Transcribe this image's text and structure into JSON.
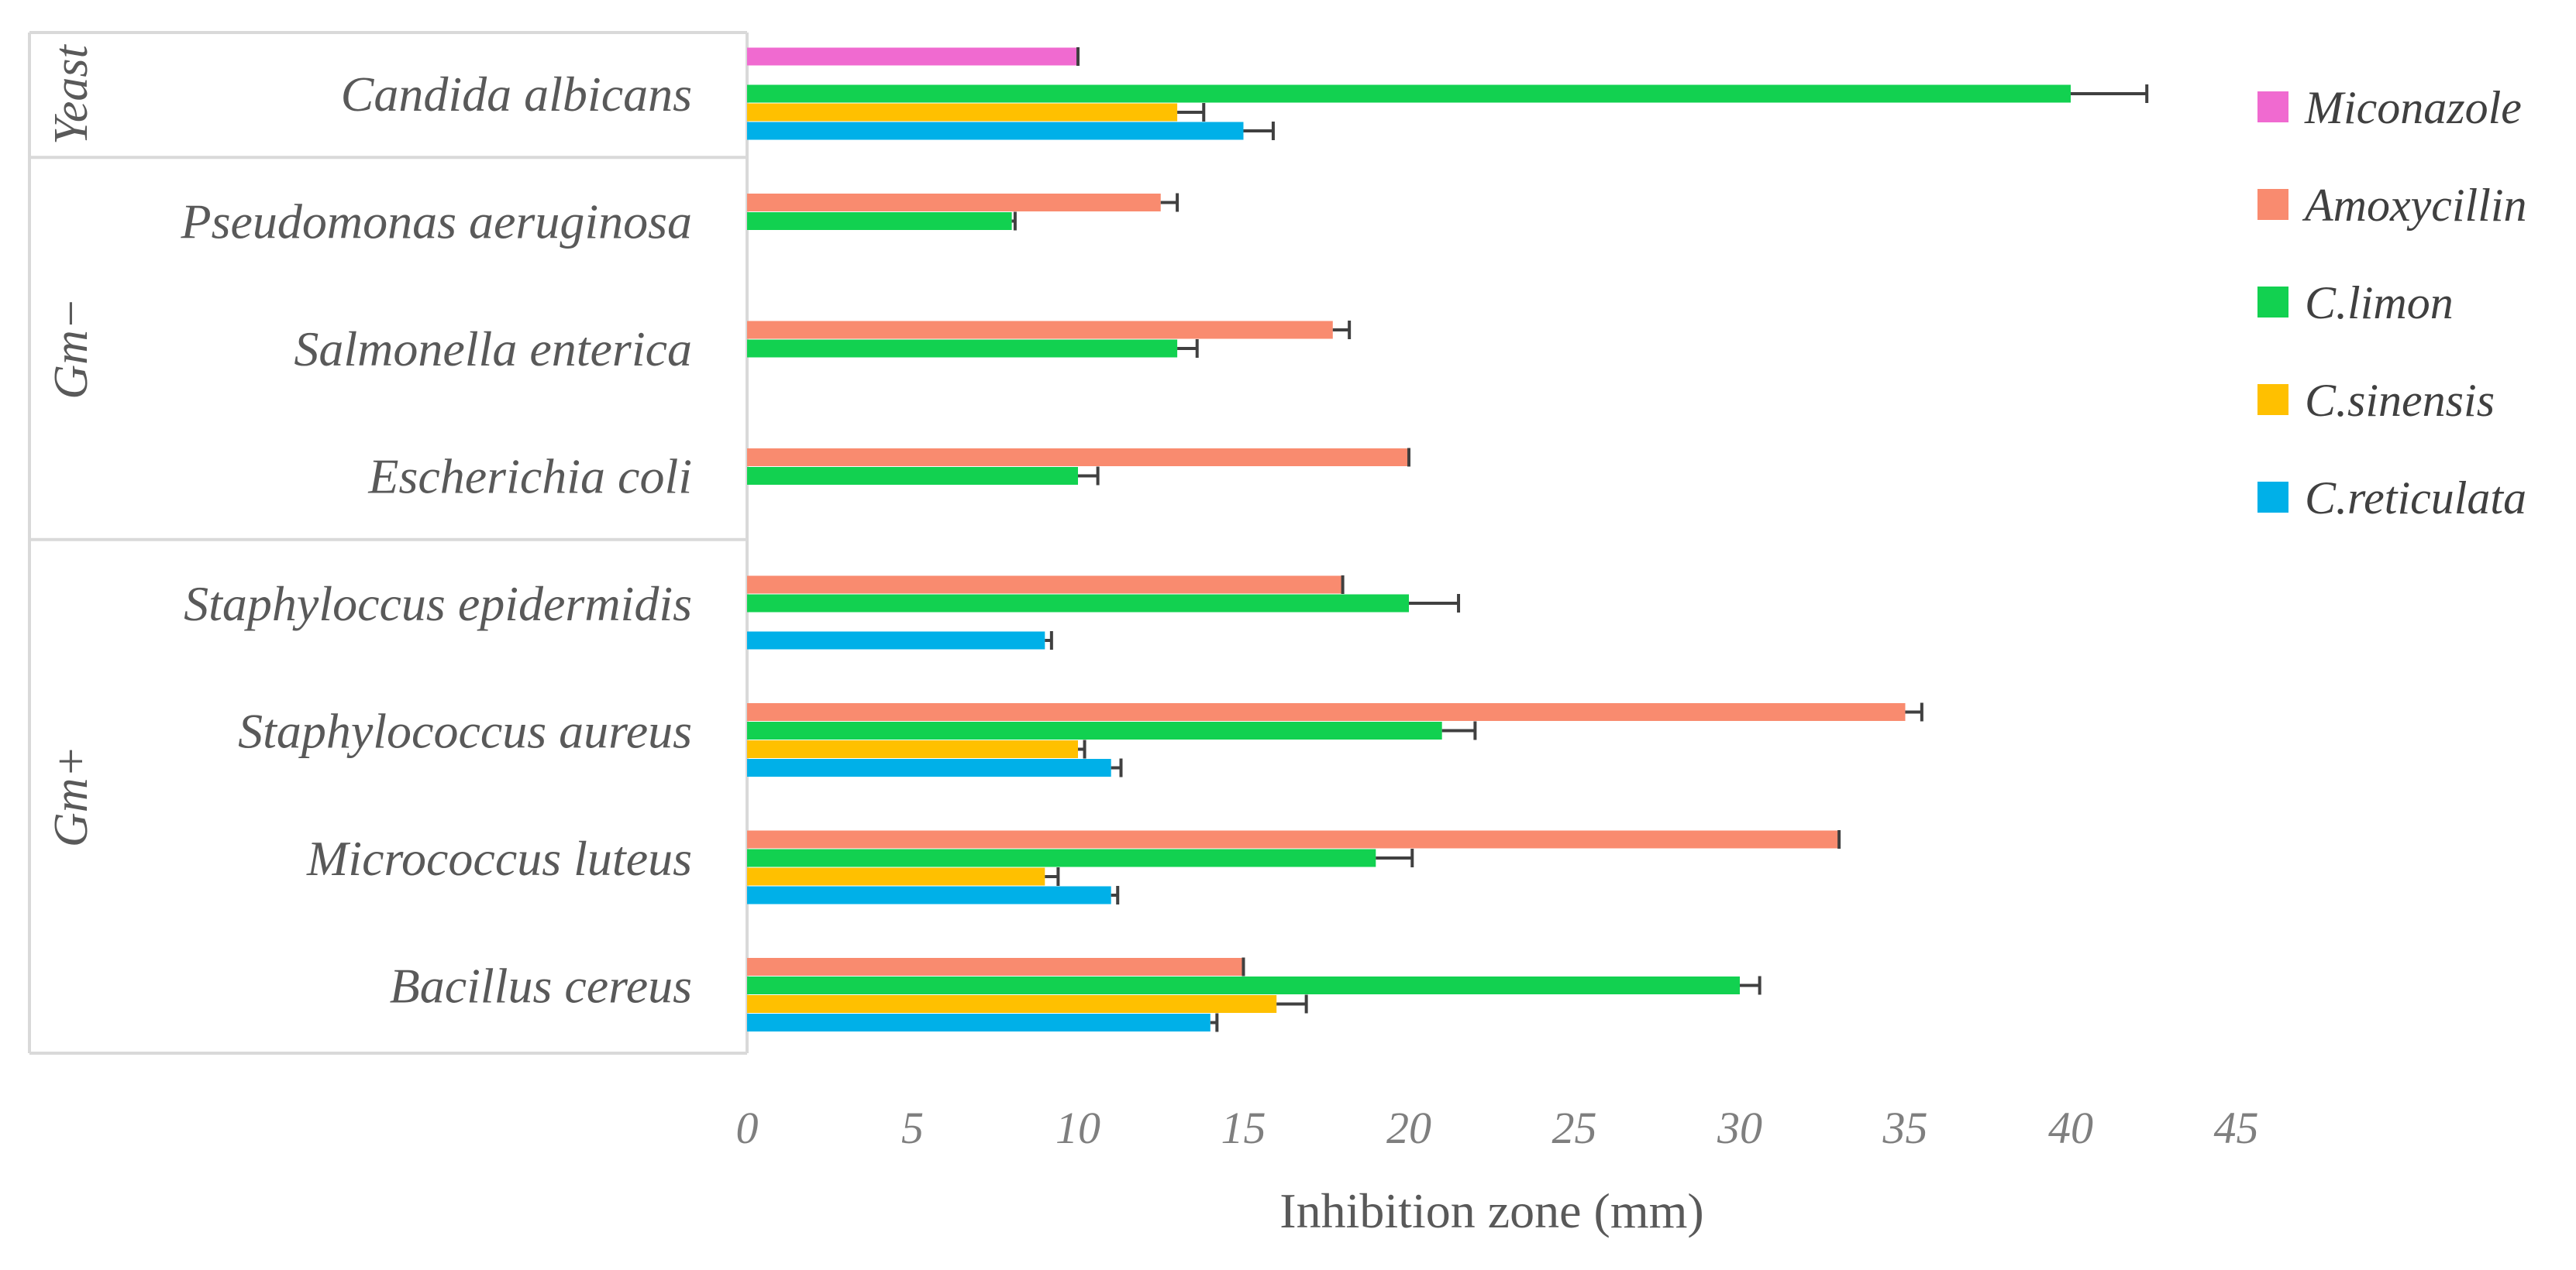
{
  "chart_data": {
    "type": "bar",
    "orientation": "horizontal",
    "title": "",
    "xlabel": "Inhibition zone (mm)",
    "ylabel": "",
    "xlim": [
      0,
      45
    ],
    "xticks": [
      "0",
      "5",
      "10",
      "15",
      "20",
      "25",
      "30",
      "35",
      "40",
      "45"
    ],
    "grid": false,
    "legend_position": "right",
    "categories": [
      "Candida albicans",
      "Pseudomonas aeruginosa",
      "Salmonella enterica",
      "Escherichia coli",
      "Staphyloccus epidermidis",
      "Staphylococcus aureus",
      "Micrococcus luteus",
      "Bacillus cereus"
    ],
    "groups": [
      {
        "label": "Yeast",
        "categories": [
          "Candida albicans"
        ]
      },
      {
        "label": "Gm−",
        "categories": [
          "Pseudomonas aeruginosa",
          "Salmonella enterica",
          "Escherichia coli"
        ]
      },
      {
        "label": "Gm+",
        "categories": [
          "Staphyloccus epidermidis",
          "Staphylococcus aureus",
          "Micrococcus luteus",
          "Bacillus cereus"
        ]
      }
    ],
    "series": [
      {
        "name": "Miconazole",
        "color": "#f06ad0",
        "values": [
          10,
          null,
          null,
          null,
          null,
          null,
          null,
          null
        ],
        "errors": [
          0,
          null,
          null,
          null,
          null,
          null,
          null,
          null
        ]
      },
      {
        "name": "Amoxycillin",
        "color": "#f98b6f",
        "values": [
          null,
          12.5,
          17.7,
          20,
          18,
          35,
          33,
          15
        ],
        "errors": [
          null,
          0.5,
          0.5,
          0,
          0,
          0.5,
          0,
          0
        ]
      },
      {
        "name": "C.limon",
        "color": "#12d150",
        "values": [
          40,
          8,
          13,
          10,
          20,
          21,
          19,
          30
        ],
        "errors": [
          2.3,
          0.1,
          0.6,
          0.6,
          1.5,
          1,
          1.1,
          0.6
        ]
      },
      {
        "name": "C.sinensis",
        "color": "#ffc000",
        "values": [
          13,
          null,
          null,
          null,
          null,
          10,
          9,
          16
        ],
        "errors": [
          0.8,
          null,
          null,
          null,
          null,
          0.2,
          0.4,
          0.9
        ]
      },
      {
        "name": "C.reticulata",
        "color": "#00b0e8",
        "values": [
          15,
          null,
          null,
          null,
          9,
          11,
          11,
          14
        ],
        "errors": [
          0.9,
          null,
          null,
          null,
          0.2,
          0.3,
          0.2,
          0.2
        ]
      }
    ]
  }
}
